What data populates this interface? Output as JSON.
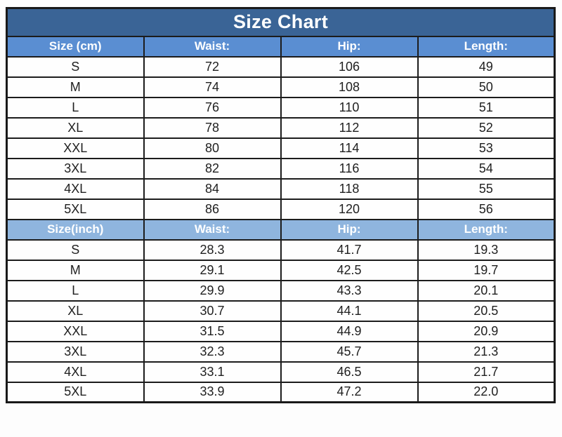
{
  "title": "Size Chart",
  "colors": {
    "title_bg": "#3a6496",
    "header_cm_bg": "#5a8ed2",
    "header_inch_bg": "#8fb5de",
    "header_text": "#ffffff",
    "cell_text": "#1f1f1f",
    "grid_border": "#1c1c1c",
    "cell_bg": "#fefefe"
  },
  "chart_data": {
    "type": "table",
    "title": "Size Chart",
    "sections": [
      {
        "name": "centimeters",
        "headers": [
          "Size (cm)",
          "Waist:",
          "Hip:",
          "Length:"
        ],
        "rows": [
          [
            "S",
            "72",
            "106",
            "49"
          ],
          [
            "M",
            "74",
            "108",
            "50"
          ],
          [
            "L",
            "76",
            "110",
            "51"
          ],
          [
            "XL",
            "78",
            "112",
            "52"
          ],
          [
            "XXL",
            "80",
            "114",
            "53"
          ],
          [
            "3XL",
            "82",
            "116",
            "54"
          ],
          [
            "4XL",
            "84",
            "118",
            "55"
          ],
          [
            "5XL",
            "86",
            "120",
            "56"
          ]
        ]
      },
      {
        "name": "inches",
        "headers": [
          "Size(inch)",
          "Waist:",
          "Hip:",
          "Length:"
        ],
        "rows": [
          [
            "S",
            "28.3",
            "41.7",
            "19.3"
          ],
          [
            "M",
            "29.1",
            "42.5",
            "19.7"
          ],
          [
            "L",
            "29.9",
            "43.3",
            "20.1"
          ],
          [
            "XL",
            "30.7",
            "44.1",
            "20.5"
          ],
          [
            "XXL",
            "31.5",
            "44.9",
            "20.9"
          ],
          [
            "3XL",
            "32.3",
            "45.7",
            "21.3"
          ],
          [
            "4XL",
            "33.1",
            "46.5",
            "21.7"
          ],
          [
            "5XL",
            "33.9",
            "47.2",
            "22.0"
          ]
        ]
      }
    ]
  }
}
